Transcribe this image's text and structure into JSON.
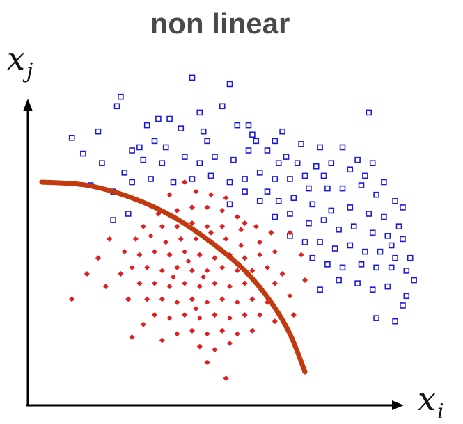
{
  "chart_data": {
    "type": "scatter",
    "title": "non linear",
    "xlabel": {
      "base": "x",
      "sub": "i"
    },
    "ylabel": {
      "base": "x",
      "sub": "j"
    },
    "grid": false,
    "legend": "none",
    "xlim": [
      0,
      100
    ],
    "ylim": [
      0,
      100
    ],
    "series": [
      {
        "marker": "hollow-square",
        "color": "#1a1adb",
        "points": [
          [
            40,
            93
          ],
          [
            21,
            87
          ],
          [
            50,
            91
          ],
          [
            20,
            84
          ],
          [
            48,
            84
          ],
          [
            42,
            82
          ],
          [
            55,
            78
          ],
          [
            87,
            82
          ],
          [
            11,
            69
          ],
          [
            8,
            74
          ],
          [
            15,
            76
          ],
          [
            24,
            70
          ],
          [
            33,
            71
          ],
          [
            30,
            73
          ],
          [
            44,
            73
          ],
          [
            34,
            80
          ],
          [
            52,
            78
          ],
          [
            56,
            75
          ],
          [
            64,
            76
          ],
          [
            62,
            73
          ],
          [
            69,
            72
          ],
          [
            74,
            71
          ],
          [
            80,
            71
          ],
          [
            84,
            67
          ],
          [
            16,
            66
          ],
          [
            22,
            63
          ],
          [
            27,
            67
          ],
          [
            32,
            66
          ],
          [
            38,
            68
          ],
          [
            42,
            66
          ],
          [
            46,
            68
          ],
          [
            51,
            67
          ],
          [
            55,
            70
          ],
          [
            60,
            70
          ],
          [
            63,
            66
          ],
          [
            68,
            66
          ],
          [
            73,
            65
          ],
          [
            77,
            66
          ],
          [
            82,
            64
          ],
          [
            86,
            62
          ],
          [
            13,
            59
          ],
          [
            19,
            57
          ],
          [
            24,
            60
          ],
          [
            29,
            61
          ],
          [
            35,
            60
          ],
          [
            40,
            61
          ],
          [
            45,
            62
          ],
          [
            50,
            60
          ],
          [
            54,
            61
          ],
          [
            58,
            63
          ],
          [
            62,
            61
          ],
          [
            66,
            61
          ],
          [
            71,
            58
          ],
          [
            76,
            58
          ],
          [
            80,
            58
          ],
          [
            85,
            59
          ],
          [
            89,
            56
          ],
          [
            94,
            54
          ],
          [
            96,
            52
          ],
          [
            58,
            54
          ],
          [
            63,
            54
          ],
          [
            67,
            55
          ],
          [
            72,
            53
          ],
          [
            77,
            51
          ],
          [
            82,
            52
          ],
          [
            87,
            50
          ],
          [
            91,
            49
          ],
          [
            95,
            46
          ],
          [
            62,
            49
          ],
          [
            66,
            50
          ],
          [
            71,
            47
          ],
          [
            75,
            48
          ],
          [
            79,
            45
          ],
          [
            83,
            46
          ],
          [
            88,
            44
          ],
          [
            92,
            43
          ],
          [
            96,
            42
          ],
          [
            66,
            43
          ],
          [
            70,
            41
          ],
          [
            74,
            41
          ],
          [
            78,
            39
          ],
          [
            82,
            40
          ],
          [
            86,
            38
          ],
          [
            90,
            38
          ],
          [
            94,
            36
          ],
          [
            98,
            36
          ],
          [
            72,
            36
          ],
          [
            76,
            34
          ],
          [
            80,
            33
          ],
          [
            85,
            34
          ],
          [
            89,
            33
          ],
          [
            93,
            33
          ],
          [
            97,
            32
          ],
          [
            79,
            29
          ],
          [
            84,
            28
          ],
          [
            88,
            26
          ],
          [
            92,
            27
          ],
          [
            97,
            24
          ],
          [
            74,
            26
          ],
          [
            89,
            17
          ],
          [
            96,
            21
          ],
          [
            94,
            16
          ],
          [
            50,
            53
          ],
          [
            54,
            57
          ],
          [
            23,
            50
          ],
          [
            19,
            48
          ],
          [
            43,
            76
          ],
          [
            37,
            77
          ],
          [
            28,
            78
          ],
          [
            31,
            80
          ],
          [
            26,
            71
          ],
          [
            57,
            73
          ],
          [
            65,
            68
          ],
          [
            70,
            62
          ],
          [
            75,
            62
          ],
          [
            88,
            66
          ],
          [
            91,
            60
          ],
          [
            60,
            57
          ],
          [
            93,
            40
          ],
          [
            99,
            29
          ]
        ]
      },
      {
        "marker": "filled-diamond",
        "color": "#e02020",
        "points": [
          [
            38,
            60
          ],
          [
            34,
            56
          ],
          [
            41,
            57
          ],
          [
            45,
            56
          ],
          [
            49,
            55
          ],
          [
            31,
            50
          ],
          [
            36,
            51
          ],
          [
            40,
            52
          ],
          [
            44,
            52
          ],
          [
            48,
            51
          ],
          [
            52,
            49
          ],
          [
            27,
            46
          ],
          [
            32,
            46
          ],
          [
            36,
            46
          ],
          [
            40,
            47
          ],
          [
            44,
            46
          ],
          [
            48,
            46
          ],
          [
            53,
            45
          ],
          [
            57,
            46
          ],
          [
            25,
            42
          ],
          [
            29,
            43
          ],
          [
            33,
            41
          ],
          [
            37,
            42
          ],
          [
            41,
            42
          ],
          [
            45,
            41
          ],
          [
            49,
            42
          ],
          [
            53,
            40
          ],
          [
            58,
            41
          ],
          [
            61,
            44
          ],
          [
            22,
            38
          ],
          [
            26,
            37
          ],
          [
            30,
            38
          ],
          [
            34,
            37
          ],
          [
            38,
            38
          ],
          [
            42,
            37
          ],
          [
            46,
            36
          ],
          [
            50,
            37
          ],
          [
            54,
            36
          ],
          [
            58,
            37
          ],
          [
            62,
            38
          ],
          [
            24,
            33
          ],
          [
            28,
            33
          ],
          [
            32,
            32
          ],
          [
            36,
            33
          ],
          [
            40,
            32
          ],
          [
            44,
            32
          ],
          [
            48,
            33
          ],
          [
            52,
            32
          ],
          [
            56,
            32
          ],
          [
            60,
            33
          ],
          [
            64,
            31
          ],
          [
            26,
            28
          ],
          [
            30,
            28
          ],
          [
            34,
            27
          ],
          [
            38,
            28
          ],
          [
            42,
            27
          ],
          [
            46,
            28
          ],
          [
            50,
            27
          ],
          [
            54,
            28
          ],
          [
            58,
            27
          ],
          [
            62,
            28
          ],
          [
            23,
            23
          ],
          [
            28,
            23
          ],
          [
            32,
            23
          ],
          [
            36,
            22
          ],
          [
            40,
            23
          ],
          [
            44,
            22
          ],
          [
            48,
            23
          ],
          [
            52,
            22
          ],
          [
            56,
            23
          ],
          [
            60,
            22
          ],
          [
            66,
            24
          ],
          [
            30,
            18
          ],
          [
            34,
            17
          ],
          [
            38,
            18
          ],
          [
            42,
            17
          ],
          [
            46,
            18
          ],
          [
            50,
            17
          ],
          [
            54,
            18
          ],
          [
            58,
            18
          ],
          [
            36,
            12
          ],
          [
            40,
            13
          ],
          [
            44,
            12
          ],
          [
            48,
            13
          ],
          [
            52,
            12
          ],
          [
            42,
            8
          ],
          [
            46,
            7
          ],
          [
            50,
            9
          ],
          [
            18,
            42
          ],
          [
            15,
            36
          ],
          [
            21,
            31
          ],
          [
            17,
            27
          ],
          [
            12,
            31
          ],
          [
            8,
            23
          ],
          [
            66,
            44
          ],
          [
            69,
            37
          ],
          [
            70,
            29
          ],
          [
            67,
            18
          ],
          [
            62,
            16
          ],
          [
            56,
            13
          ],
          [
            27,
            15
          ],
          [
            24,
            11
          ],
          [
            32,
            10
          ],
          [
            44,
            3
          ],
          [
            49,
            -2
          ],
          [
            54,
            47
          ],
          [
            39,
            35
          ],
          [
            43,
            30
          ],
          [
            47,
            39
          ],
          [
            35,
            30
          ],
          [
            41,
            20
          ],
          [
            45,
            44
          ]
        ]
      }
    ],
    "decision_boundary": {
      "color": "#c23a0d",
      "points": [
        [
          0,
          60
        ],
        [
          12,
          59
        ],
        [
          24,
          55
        ],
        [
          35,
          49
        ],
        [
          45,
          41
        ],
        [
          54,
          32
        ],
        [
          61,
          22
        ],
        [
          66,
          12
        ],
        [
          70,
          0
        ]
      ]
    }
  }
}
